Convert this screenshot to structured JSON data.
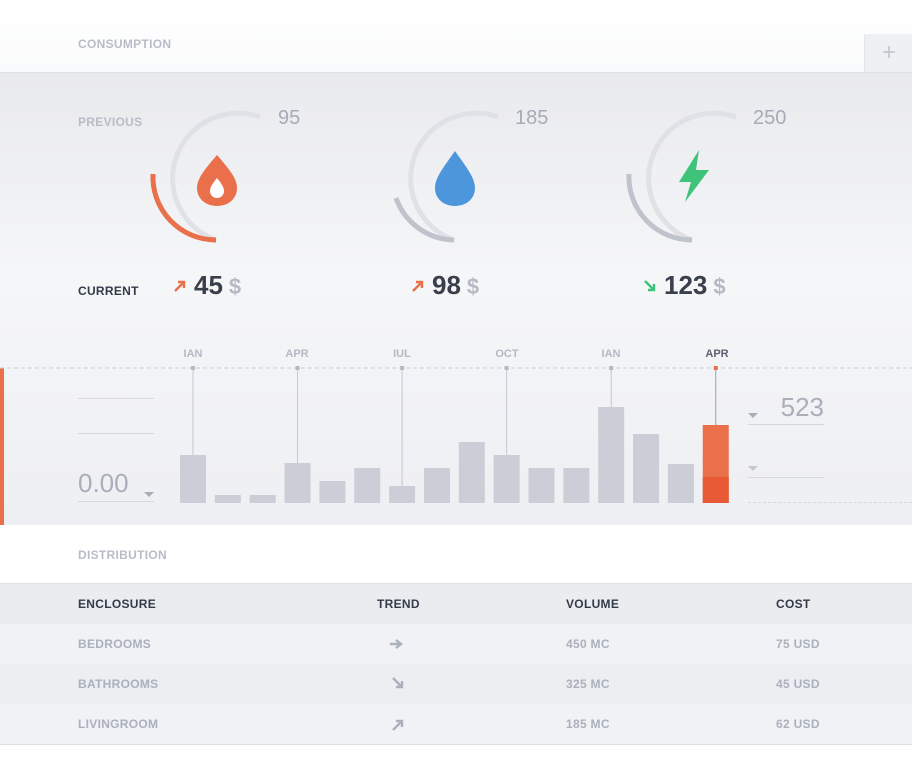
{
  "consumption": {
    "title": "CONSUMPTION",
    "add_label": "+",
    "previous_label": "PREVIOUS",
    "current_label": "CURRENT",
    "gauges": [
      {
        "icon": "flame-icon",
        "max": "95",
        "current": "45",
        "currency": "$",
        "trend": "up",
        "color": "#e9704a",
        "fill": 0.36
      },
      {
        "icon": "water-drop-icon",
        "max": "185",
        "current": "98",
        "currency": "$",
        "trend": "up",
        "color": "#4d96dc",
        "fill": 0.25
      },
      {
        "icon": "lightning-icon",
        "max": "250",
        "current": "123",
        "currency": "$",
        "trend": "down",
        "color": "#3fc37a",
        "fill": 0.24
      }
    ]
  },
  "chart_data": {
    "type": "bar",
    "month_labels": [
      "IAN",
      "APR",
      "IUL",
      "OCT",
      "IAN",
      "APR"
    ],
    "values": [
      48,
      8,
      8,
      40,
      22,
      35,
      17,
      35,
      61,
      48,
      35,
      35,
      96,
      69,
      39,
      78
    ],
    "highlight_index": 15,
    "highlight_color": "#e9704a",
    "left_value": "0.00",
    "right_value": "523"
  },
  "distribution": {
    "title": "DISTRIBUTION",
    "columns": [
      "ENCLOSURE",
      "TREND",
      "VOLUME",
      "COST"
    ],
    "rows": [
      {
        "enclosure": "BEDROOMS",
        "trend": "flat",
        "volume": "450 MC",
        "cost": "75 USD"
      },
      {
        "enclosure": "BATHROOMS",
        "trend": "down",
        "volume": "325 MC",
        "cost": "45 USD"
      },
      {
        "enclosure": "LIVINGROOM",
        "trend": "up",
        "volume": "185 MC",
        "cost": "62 USD"
      }
    ]
  }
}
